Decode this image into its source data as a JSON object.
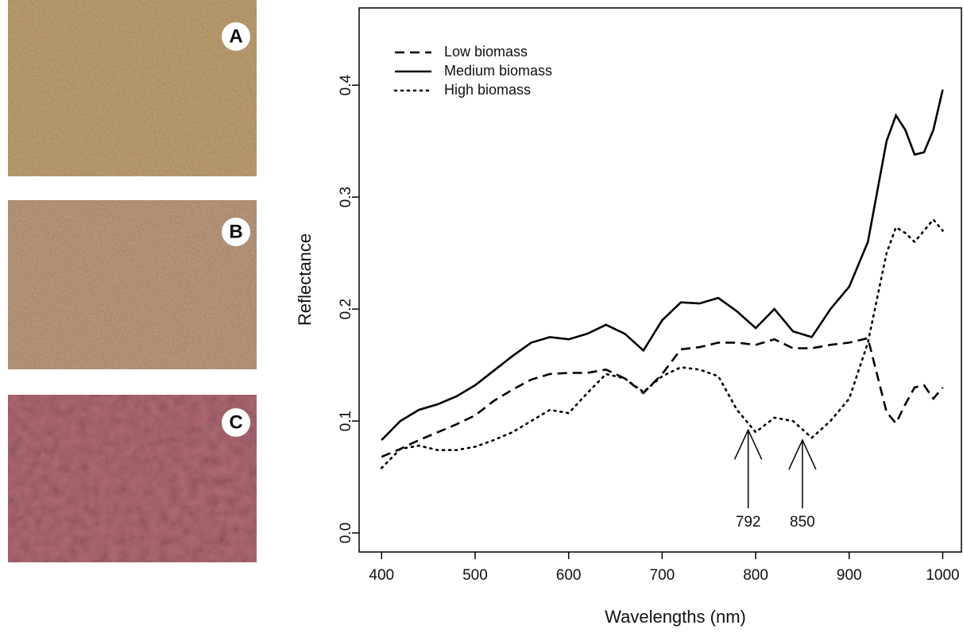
{
  "panels": [
    "A",
    "B",
    "C"
  ],
  "chart_data": {
    "type": "line",
    "x_label": "Wavelengths (nm)",
    "y_label": "Reflectance",
    "x": [
      400,
      420,
      440,
      460,
      480,
      500,
      520,
      540,
      560,
      580,
      600,
      620,
      640,
      660,
      680,
      700,
      720,
      740,
      760,
      780,
      800,
      820,
      840,
      860,
      880,
      900,
      920,
      940,
      950,
      960,
      970,
      980,
      990,
      1000
    ],
    "series": [
      {
        "name": "Low biomass",
        "color": "#000000",
        "linestyle": "dashed",
        "values": [
          0.068,
          0.075,
          0.083,
          0.09,
          0.097,
          0.105,
          0.118,
          0.128,
          0.137,
          0.142,
          0.143,
          0.143,
          0.146,
          0.138,
          0.125,
          0.142,
          0.164,
          0.166,
          0.17,
          0.17,
          0.168,
          0.173,
          0.165,
          0.165,
          0.168,
          0.17,
          0.174,
          0.108,
          0.098,
          0.115,
          0.13,
          0.132,
          0.12,
          0.13
        ]
      },
      {
        "name": "Medium biomass",
        "color": "#000000",
        "linestyle": "solid",
        "values": [
          0.083,
          0.1,
          0.11,
          0.115,
          0.122,
          0.132,
          0.145,
          0.158,
          0.17,
          0.175,
          0.173,
          0.178,
          0.186,
          0.178,
          0.163,
          0.19,
          0.206,
          0.205,
          0.21,
          0.198,
          0.183,
          0.2,
          0.18,
          0.175,
          0.2,
          0.22,
          0.26,
          0.35,
          0.373,
          0.36,
          0.338,
          0.34,
          0.36,
          0.396
        ]
      },
      {
        "name": "High biomass",
        "color": "#000000",
        "linestyle": "dotted",
        "values": [
          0.058,
          0.075,
          0.078,
          0.074,
          0.074,
          0.077,
          0.083,
          0.09,
          0.1,
          0.11,
          0.107,
          0.125,
          0.142,
          0.138,
          0.126,
          0.14,
          0.148,
          0.146,
          0.14,
          0.11,
          0.09,
          0.103,
          0.1,
          0.085,
          0.1,
          0.12,
          0.17,
          0.25,
          0.273,
          0.268,
          0.26,
          0.27,
          0.28,
          0.27
        ]
      }
    ],
    "xlim": [
      376,
      1020
    ],
    "ylim": [
      -0.017,
      0.469
    ],
    "xticks": [
      400,
      500,
      600,
      700,
      800,
      900,
      1000
    ],
    "yticks": [
      {
        "value": 0,
        "label": "0.0"
      },
      0.1,
      0.2,
      0.3,
      0.4
    ],
    "legend": "top-left",
    "annotations": [
      {
        "text": "792",
        "x": 792,
        "y": 0.092
      },
      {
        "text": "850",
        "x": 850,
        "y": 0.083
      }
    ]
  }
}
